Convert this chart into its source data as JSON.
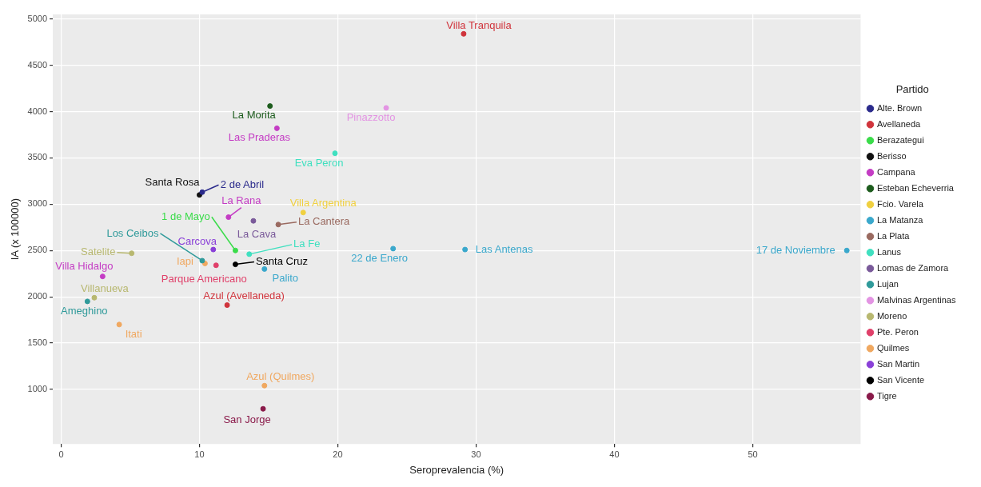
{
  "chart_data": {
    "type": "scatter",
    "xlabel": "Seroprevalencia (%)",
    "ylabel": "IA (x 100000)",
    "legend_title": "Partido",
    "legend": "right",
    "grid": true,
    "marker": "circle",
    "xlim": [
      -0.6,
      57.8
    ],
    "ylim": [
      410,
      5050
    ],
    "xticks": [
      0,
      10,
      20,
      30,
      40,
      50
    ],
    "yticks": [
      1000,
      1500,
      2000,
      2500,
      3000,
      3500,
      4000,
      4500,
      5000
    ],
    "series": [
      {
        "name": "Alte. Brown",
        "color": "#2b2b8c",
        "x": [
          10.2
        ],
        "values": [
          3130
        ]
      },
      {
        "name": "Avellaneda",
        "color": "#d0343c",
        "x": [
          29.1,
          12.0
        ],
        "values": [
          4840,
          1910
        ]
      },
      {
        "name": "Berazategui",
        "color": "#3adc4a",
        "x": [
          12.6
        ],
        "values": [
          2500
        ]
      },
      {
        "name": "Berisso",
        "color": "#111111",
        "x": [
          10.0
        ],
        "values": [
          3100
        ]
      },
      {
        "name": "Campana",
        "color": "#c43cc4",
        "x": [
          15.6,
          12.1,
          3.0
        ],
        "values": [
          3820,
          2860,
          2220
        ]
      },
      {
        "name": "Esteban Echeverria",
        "color": "#1d5c1d",
        "x": [
          15.1
        ],
        "values": [
          4060
        ]
      },
      {
        "name": "Fcio. Varela",
        "color": "#f0d040",
        "x": [
          17.5
        ],
        "values": [
          2910
        ]
      },
      {
        "name": "La Matanza",
        "color": "#3aa8cc",
        "x": [
          24.0,
          29.2,
          56.8,
          14.7
        ],
        "values": [
          2520,
          2510,
          2500,
          2300
        ]
      },
      {
        "name": "La Plata",
        "color": "#9a6a60",
        "x": [
          15.7
        ],
        "values": [
          2780
        ]
      },
      {
        "name": "Lanus",
        "color": "#40e0c0",
        "x": [
          19.8,
          13.6
        ],
        "values": [
          3550,
          2460
        ]
      },
      {
        "name": "Lomas de Zamora",
        "color": "#7a5a9a",
        "x": [
          13.9
        ],
        "values": [
          2820
        ]
      },
      {
        "name": "Lujan",
        "color": "#2f9a9a",
        "x": [
          10.2,
          1.9
        ],
        "values": [
          2390,
          1950
        ]
      },
      {
        "name": "Malvinas Argentinas",
        "color": "#e394e3",
        "x": [
          23.5
        ],
        "values": [
          4040
        ]
      },
      {
        "name": "Moreno",
        "color": "#b8b870",
        "x": [
          5.1,
          2.4
        ],
        "values": [
          2470,
          1990
        ]
      },
      {
        "name": "Pte. Peron",
        "color": "#e0406a",
        "x": [
          11.2
        ],
        "values": [
          2340
        ]
      },
      {
        "name": "Quilmes",
        "color": "#f0a860",
        "x": [
          10.4,
          4.2,
          14.7
        ],
        "values": [
          2360,
          1700,
          1040
        ]
      },
      {
        "name": "San Martin",
        "color": "#8a40d8",
        "x": [
          11.0
        ],
        "values": [
          2510
        ]
      },
      {
        "name": "San Vicente",
        "color": "#000000",
        "x": [
          12.6
        ],
        "values": [
          2350
        ]
      },
      {
        "name": "Tigre",
        "color": "#8a1a4a",
        "x": [
          14.6
        ],
        "values": [
          790
        ]
      }
    ],
    "annotations": [
      {
        "text": "Villa Tranquila",
        "x": 29.1,
        "y": 4840
      },
      {
        "text": "La Morita",
        "x": 15.1,
        "y": 4060
      },
      {
        "text": "Pinazzotto",
        "x": 23.5,
        "y": 4040
      },
      {
        "text": "Las Praderas",
        "x": 15.6,
        "y": 3820
      },
      {
        "text": "Eva Peron",
        "x": 19.8,
        "y": 3550
      },
      {
        "text": "Santa Rosa",
        "x": 10.0,
        "y": 3100
      },
      {
        "text": "2 de Abril",
        "x": 10.2,
        "y": 3130
      },
      {
        "text": "La Rana",
        "x": 12.1,
        "y": 2860
      },
      {
        "text": "Villa Argentina",
        "x": 17.5,
        "y": 2910
      },
      {
        "text": "1 de Mayo",
        "x": 12.6,
        "y": 2500
      },
      {
        "text": "La Cava",
        "x": 13.9,
        "y": 2820
      },
      {
        "text": "La Cantera",
        "x": 15.7,
        "y": 2780
      },
      {
        "text": "Los Ceibos",
        "x": 10.2,
        "y": 2390
      },
      {
        "text": "Carcova",
        "x": 11.0,
        "y": 2510
      },
      {
        "text": "La Fe",
        "x": 13.6,
        "y": 2460
      },
      {
        "text": "Satelite",
        "x": 5.1,
        "y": 2470
      },
      {
        "text": "22 de Enero",
        "x": 24.0,
        "y": 2520
      },
      {
        "text": "Las Antenas",
        "x": 29.2,
        "y": 2510
      },
      {
        "text": "17 de Noviembre",
        "x": 56.8,
        "y": 2500
      },
      {
        "text": "Iapi",
        "x": 10.4,
        "y": 2360
      },
      {
        "text": "Santa Cruz",
        "x": 12.6,
        "y": 2350
      },
      {
        "text": "Villa Hidalgo",
        "x": 3.0,
        "y": 2220
      },
      {
        "text": "Parque Americano",
        "x": 11.2,
        "y": 2340
      },
      {
        "text": "Palito",
        "x": 14.7,
        "y": 2300
      },
      {
        "text": "Villanueva",
        "x": 2.4,
        "y": 1990
      },
      {
        "text": "Azul (Avellaneda)",
        "x": 12.0,
        "y": 1910
      },
      {
        "text": "Ameghino",
        "x": 1.9,
        "y": 1950
      },
      {
        "text": "Itati",
        "x": 4.2,
        "y": 1700
      },
      {
        "text": "Azul (Quilmes)",
        "x": 14.7,
        "y": 1040
      },
      {
        "text": "San Jorge",
        "x": 14.6,
        "y": 790
      }
    ]
  }
}
